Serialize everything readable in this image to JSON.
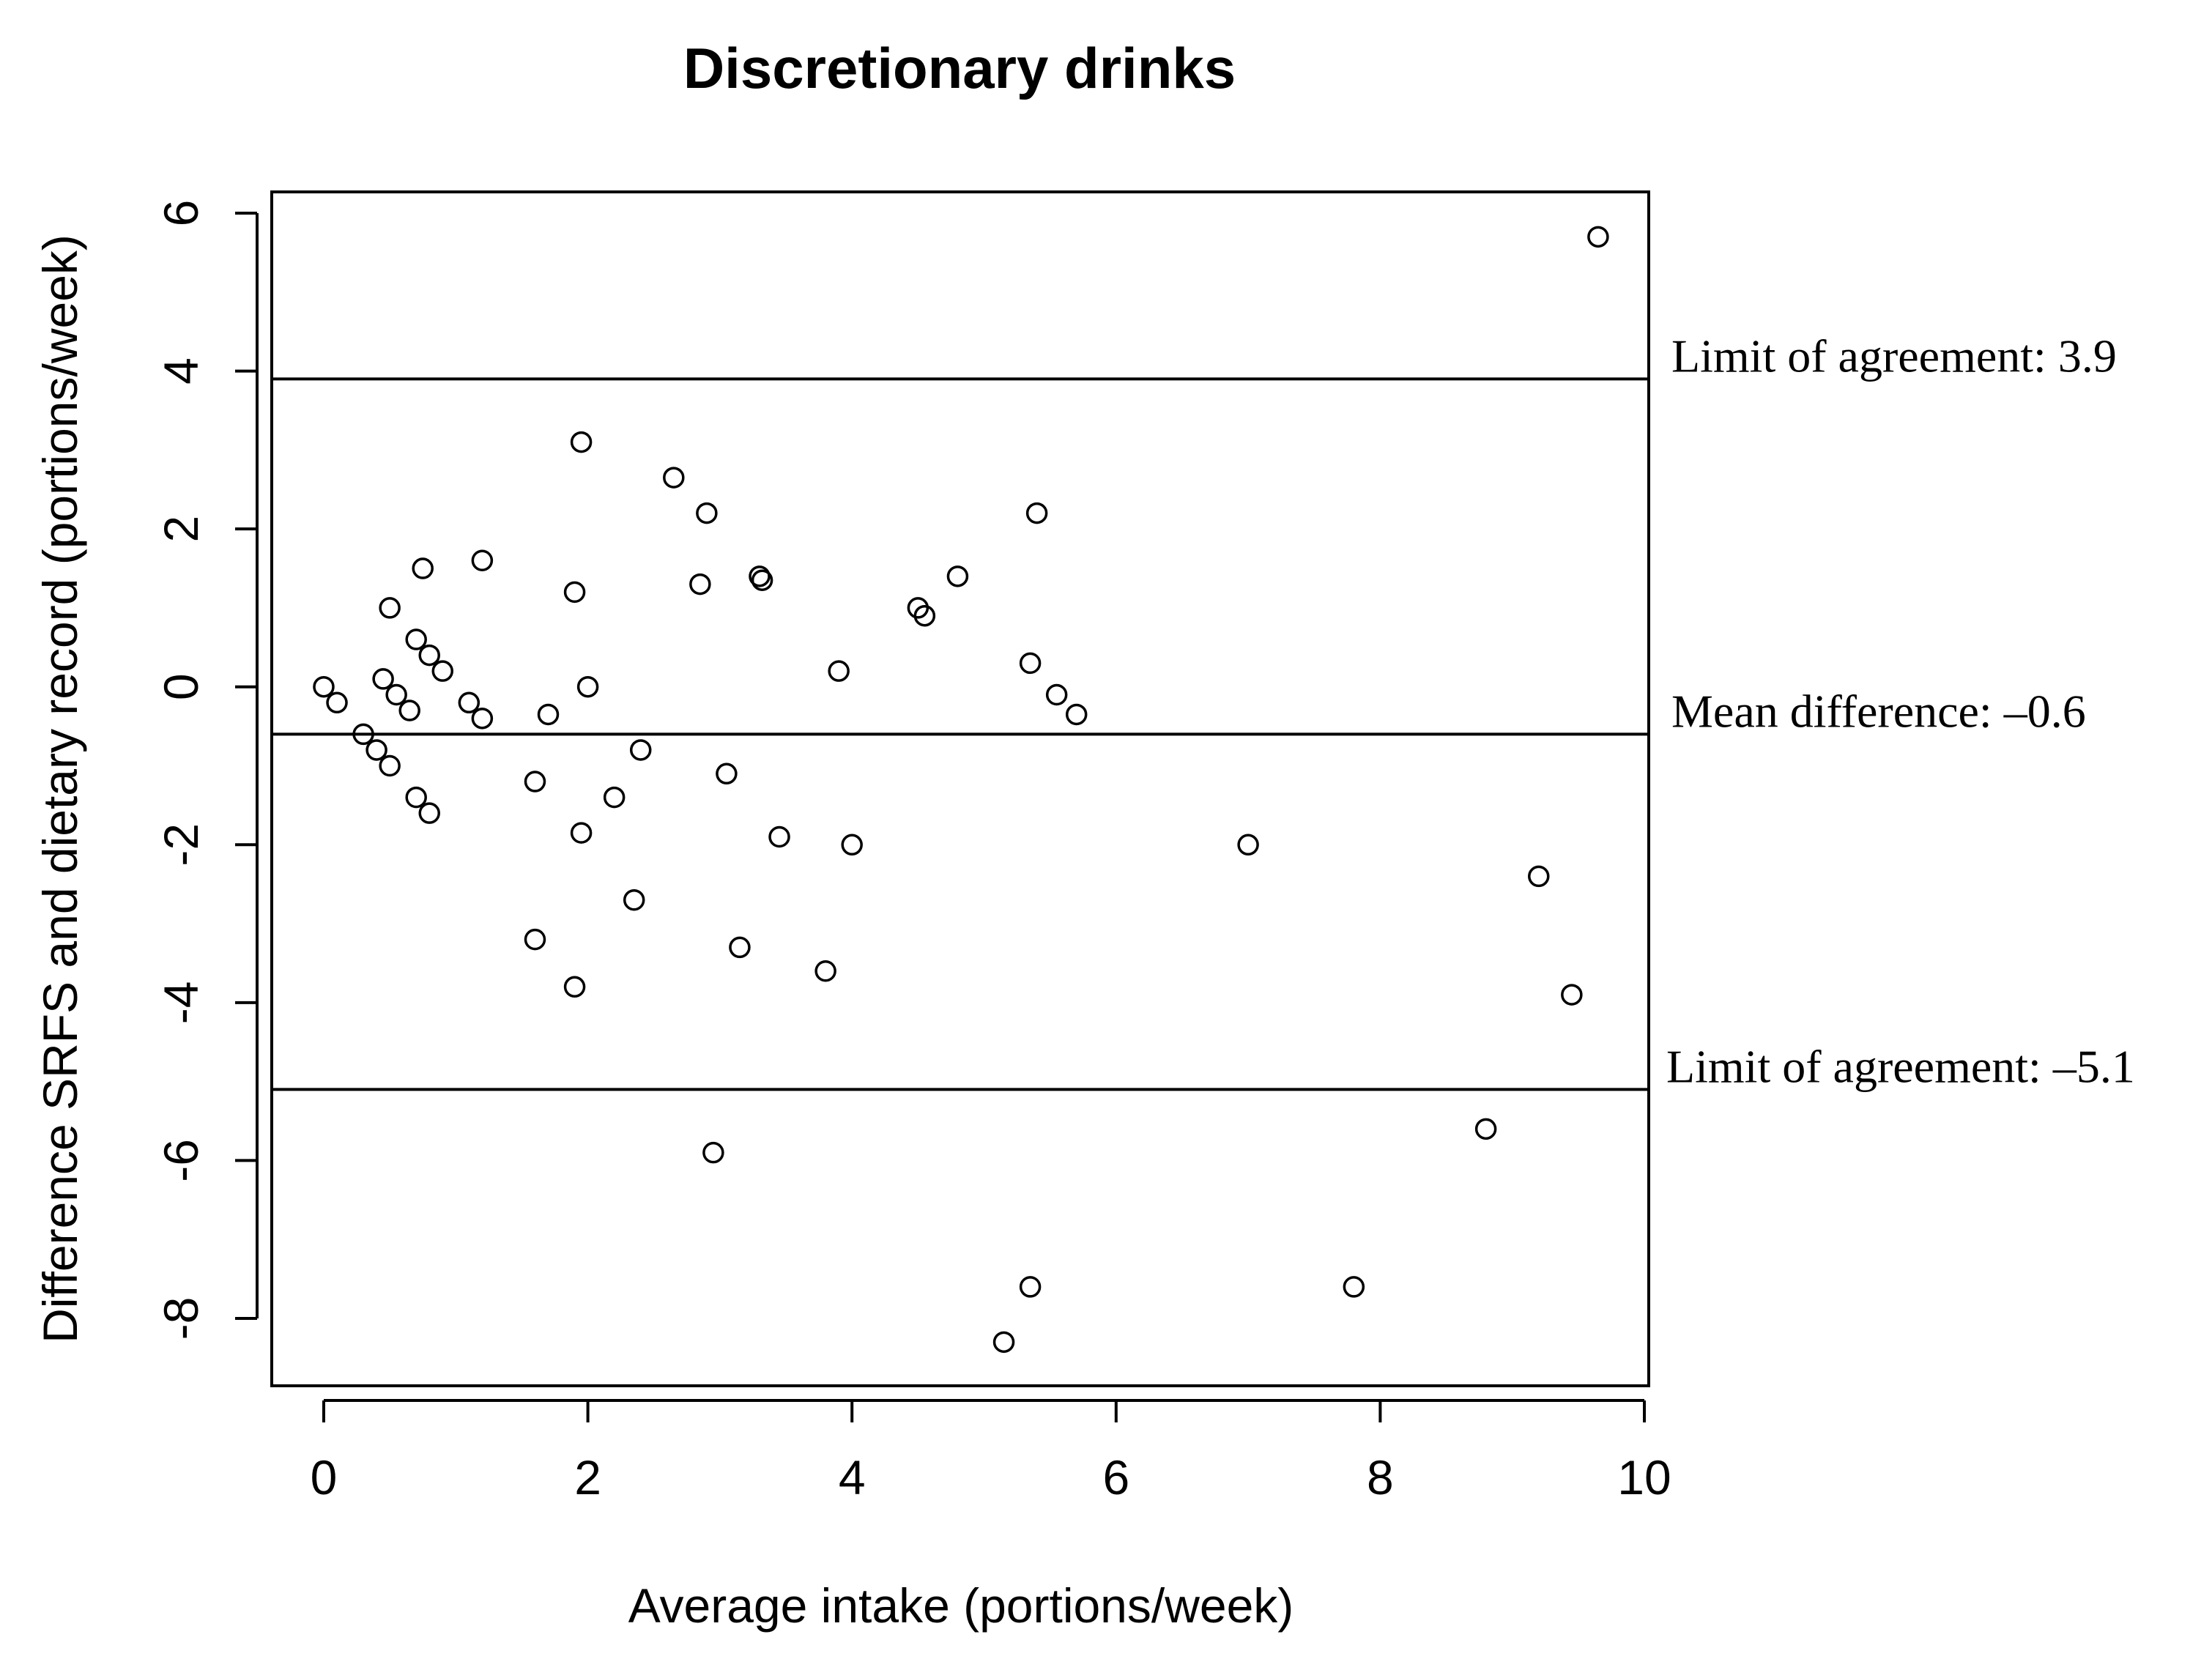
{
  "chart_data": {
    "type": "scatter",
    "title": "Discretionary drinks",
    "xlabel": "Average intake (portions/week)",
    "ylabel": "Difference SRFS and dietary record (portions/week)",
    "xlim": [
      0,
      10
    ],
    "ylim": [
      -8,
      6
    ],
    "x_ticks": [
      0,
      2,
      4,
      6,
      8,
      10
    ],
    "y_ticks": [
      -8,
      -6,
      -4,
      -2,
      0,
      2,
      4,
      6
    ],
    "x_tick_labels": [
      "0",
      "2",
      "4",
      "6",
      "8",
      "10"
    ],
    "y_tick_labels": [
      "-8",
      "-6",
      "-4",
      "-2",
      "0",
      "2",
      "4",
      "6"
    ],
    "grid": false,
    "reference_lines": [
      {
        "name": "upper-limit",
        "value": 3.9,
        "label": "Limit of agreement: 3.9"
      },
      {
        "name": "mean-difference",
        "value": -0.6,
        "label": "Mean difference: –0.6"
      },
      {
        "name": "lower-limit",
        "value": -5.1,
        "label": "Limit of agreement: –5.1"
      }
    ],
    "points": [
      {
        "x": 0.0,
        "y": 0.0
      },
      {
        "x": 0.1,
        "y": -0.2
      },
      {
        "x": 0.3,
        "y": -0.6
      },
      {
        "x": 0.4,
        "y": -0.8
      },
      {
        "x": 0.45,
        "y": 0.1
      },
      {
        "x": 0.5,
        "y": 1.0
      },
      {
        "x": 0.5,
        "y": -1.0
      },
      {
        "x": 0.55,
        "y": -0.1
      },
      {
        "x": 0.65,
        "y": -0.3
      },
      {
        "x": 0.7,
        "y": 0.6
      },
      {
        "x": 0.7,
        "y": -1.4
      },
      {
        "x": 0.75,
        "y": 1.5
      },
      {
        "x": 0.8,
        "y": 0.4
      },
      {
        "x": 0.8,
        "y": -1.6
      },
      {
        "x": 0.9,
        "y": 0.2
      },
      {
        "x": 1.1,
        "y": -0.2
      },
      {
        "x": 1.2,
        "y": -0.4
      },
      {
        "x": 1.2,
        "y": 1.6
      },
      {
        "x": 1.6,
        "y": -1.2
      },
      {
        "x": 1.6,
        "y": -3.2
      },
      {
        "x": 1.7,
        "y": -0.35
      },
      {
        "x": 1.9,
        "y": 1.2
      },
      {
        "x": 1.9,
        "y": -3.8
      },
      {
        "x": 1.95,
        "y": -1.85
      },
      {
        "x": 1.95,
        "y": 3.1
      },
      {
        "x": 2.0,
        "y": 0.0
      },
      {
        "x": 2.2,
        "y": -1.4
      },
      {
        "x": 2.35,
        "y": -2.7
      },
      {
        "x": 2.4,
        "y": -0.8
      },
      {
        "x": 2.65,
        "y": 2.65
      },
      {
        "x": 2.85,
        "y": 1.3
      },
      {
        "x": 2.9,
        "y": 2.2
      },
      {
        "x": 2.95,
        "y": -5.9
      },
      {
        "x": 3.05,
        "y": -1.1
      },
      {
        "x": 3.15,
        "y": -3.3
      },
      {
        "x": 3.3,
        "y": 1.4
      },
      {
        "x": 3.32,
        "y": 1.35
      },
      {
        "x": 3.45,
        "y": -1.9
      },
      {
        "x": 3.8,
        "y": -3.6
      },
      {
        "x": 3.9,
        "y": 0.2
      },
      {
        "x": 4.0,
        "y": -2.0
      },
      {
        "x": 4.5,
        "y": 1.0
      },
      {
        "x": 4.55,
        "y": 0.9
      },
      {
        "x": 4.8,
        "y": 1.4
      },
      {
        "x": 5.15,
        "y": -8.3
      },
      {
        "x": 5.35,
        "y": 0.3
      },
      {
        "x": 5.35,
        "y": -7.6
      },
      {
        "x": 5.4,
        "y": 2.2
      },
      {
        "x": 5.55,
        "y": -0.1
      },
      {
        "x": 5.7,
        "y": -0.35
      },
      {
        "x": 7.0,
        "y": -2.0
      },
      {
        "x": 7.8,
        "y": -7.6
      },
      {
        "x": 8.8,
        "y": -5.6
      },
      {
        "x": 9.2,
        "y": -2.4
      },
      {
        "x": 9.45,
        "y": -3.9
      },
      {
        "x": 9.65,
        "y": 5.7
      }
    ]
  }
}
